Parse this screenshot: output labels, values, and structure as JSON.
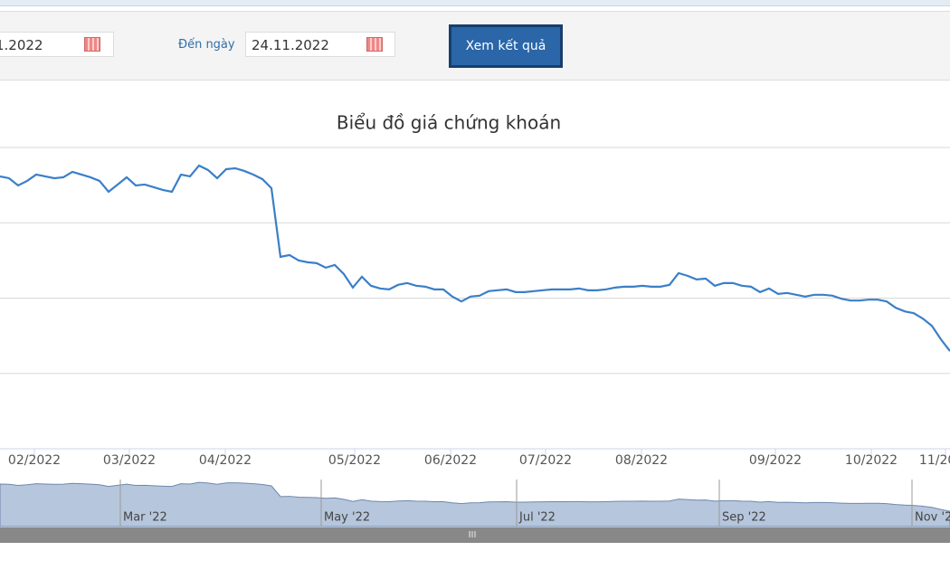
{
  "form": {
    "from_date": "1.2022",
    "to_label": "Đến ngày",
    "to_date": "24.11.2022",
    "submit": "Xem kết quả"
  },
  "chart_data": {
    "type": "line",
    "title": "Biểu đồ giá chứng khoán",
    "series": [
      {
        "color": "#3a7fc8",
        "values": [
          90.4,
          89.8,
          87.4,
          88.9,
          91.0,
          90.4,
          89.8,
          90.1,
          91.9,
          91.0,
          90.1,
          88.9,
          85.3,
          87.7,
          90.1,
          87.4,
          87.7,
          86.8,
          85.9,
          85.3,
          91.0,
          90.4,
          94.0,
          92.5,
          89.8,
          92.8,
          93.1,
          92.2,
          91.0,
          89.5,
          86.5,
          63.7,
          64.3,
          62.5,
          61.9,
          61.6,
          60.1,
          61.0,
          58.0,
          53.5,
          57.1,
          54.1,
          53.2,
          52.9,
          54.4,
          55.0,
          54.1,
          53.8,
          52.9,
          52.9,
          50.5,
          48.9,
          50.5,
          50.8,
          52.3,
          52.6,
          52.9,
          52.0,
          52.0,
          52.3,
          52.6,
          52.9,
          52.9,
          52.9,
          53.2,
          52.6,
          52.6,
          52.9,
          53.5,
          53.8,
          53.8,
          54.1,
          53.8,
          53.8,
          54.4,
          58.3,
          57.4,
          56.2,
          56.5,
          54.1,
          55.0,
          55.0,
          54.1,
          53.8,
          52.0,
          53.2,
          51.4,
          51.7,
          51.1,
          50.5,
          51.1,
          51.1,
          50.8,
          49.8,
          49.2,
          49.2,
          49.5,
          49.5,
          48.9,
          46.8,
          45.6,
          45.0,
          43.2,
          40.8,
          36.3,
          32.4
        ]
      }
    ],
    "xlim": [
      0,
      105
    ],
    "ylim": [
      0,
      100
    ],
    "yticks": [
      0,
      25,
      50,
      75,
      100
    ],
    "grid": true,
    "xticks": [
      {
        "value": 3.8,
        "label": "02/2022"
      },
      {
        "value": 14.3,
        "label": "03/2022"
      },
      {
        "value": 24.9,
        "label": "04/2022"
      },
      {
        "value": 39.2,
        "label": "05/2022"
      },
      {
        "value": 49.8,
        "label": "06/2022"
      },
      {
        "value": 60.3,
        "label": "07/2022"
      },
      {
        "value": 70.9,
        "label": "08/2022"
      },
      {
        "value": 85.7,
        "label": "09/2022"
      },
      {
        "value": 96.3,
        "label": "10/2022"
      },
      {
        "value": 104.5,
        "label": "11/2022"
      }
    ],
    "navigator_xticks": [
      {
        "value": 13.3,
        "label": "Mar '22"
      },
      {
        "value": 35.5,
        "label": "May '22"
      },
      {
        "value": 57.1,
        "label": "Jul '22"
      },
      {
        "value": 79.5,
        "label": "Sep '22"
      },
      {
        "value": 100.8,
        "label": "Nov '22"
      }
    ]
  }
}
